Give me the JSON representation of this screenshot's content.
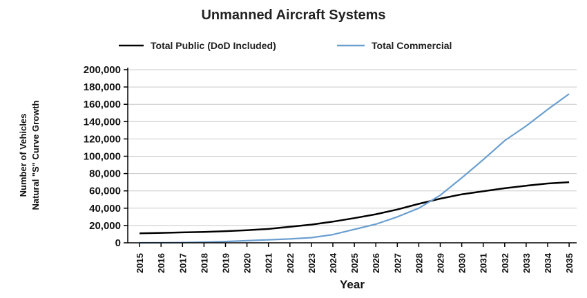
{
  "chart_data": {
    "type": "line",
    "title": "Unmanned Aircraft Systems",
    "xlabel": "Year",
    "ylabel_lines": [
      "Number of Vehicles",
      "Natural \"S\" Curve Growth"
    ],
    "x": [
      "2015",
      "2016",
      "2017",
      "2018",
      "2019",
      "2020",
      "2021",
      "2022",
      "2023",
      "2024",
      "2025",
      "2026",
      "2027",
      "2028",
      "2029",
      "2030",
      "2031",
      "2032",
      "2033",
      "2034",
      "2035"
    ],
    "series": [
      {
        "name": "Total Public (DoD Included)",
        "color": "#000000",
        "values": [
          11000,
          11500,
          12000,
          12500,
          13500,
          14500,
          16000,
          18500,
          21000,
          24500,
          28500,
          33000,
          38500,
          45000,
          51000,
          56000,
          59500,
          63000,
          66000,
          68500,
          70000
        ]
      },
      {
        "name": "Total Commercial",
        "color": "#6b9fd0",
        "values": [
          0,
          100,
          300,
          800,
          1500,
          2500,
          3500,
          4500,
          6000,
          9500,
          15500,
          21500,
          30000,
          40000,
          55000,
          75000,
          96000,
          118000,
          135000,
          154000,
          172000
        ]
      }
    ],
    "ylim": [
      0,
      200000
    ],
    "yticks": [
      "0",
      "20,000",
      "40,000",
      "60,000",
      "80,000",
      "100,000",
      "120,000",
      "140,000",
      "160,000",
      "180,000",
      "200,000"
    ],
    "ytick_values": [
      0,
      20000,
      40000,
      60000,
      80000,
      100000,
      120000,
      140000,
      160000,
      180000,
      200000
    ],
    "grid": true,
    "legend_position": "top"
  }
}
